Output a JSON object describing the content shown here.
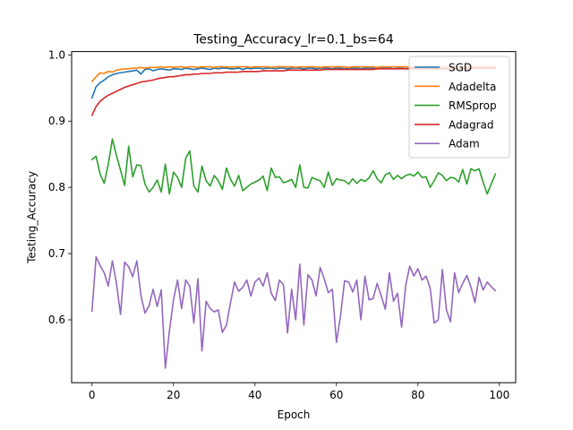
{
  "chart_data": {
    "type": "line",
    "title": "Testing_Accuracy_lr=0.1_bs=64",
    "xlabel": "Epoch",
    "ylabel": "Testing_Accuracy",
    "xlim": [
      -5,
      104
    ],
    "ylim": [
      0.505,
      1.005
    ],
    "xticks": [
      0,
      20,
      40,
      60,
      80,
      100
    ],
    "yticks": [
      0.6,
      0.7,
      0.8,
      0.9,
      1.0
    ],
    "xtick_labels": [
      "0",
      "20",
      "40",
      "60",
      "80",
      "100"
    ],
    "ytick_labels": [
      "0.6",
      "0.7",
      "0.8",
      "0.9",
      "1.0"
    ],
    "grid": false,
    "legend_position": "top-right",
    "x": [
      0,
      1,
      2,
      3,
      4,
      5,
      6,
      7,
      8,
      9,
      10,
      11,
      12,
      13,
      14,
      15,
      16,
      17,
      18,
      19,
      20,
      21,
      22,
      23,
      24,
      25,
      26,
      27,
      28,
      29,
      30,
      31,
      32,
      33,
      34,
      35,
      36,
      37,
      38,
      39,
      40,
      41,
      42,
      43,
      44,
      45,
      46,
      47,
      48,
      49,
      50,
      51,
      52,
      53,
      54,
      55,
      56,
      57,
      58,
      59,
      60,
      61,
      62,
      63,
      64,
      65,
      66,
      67,
      68,
      69,
      70,
      71,
      72,
      73,
      74,
      75,
      76,
      77,
      78,
      79,
      80,
      81,
      82,
      83,
      84,
      85,
      86,
      87,
      88,
      89,
      90,
      91,
      92,
      93,
      94,
      95,
      96,
      97,
      98,
      99
    ],
    "series": [
      {
        "name": "SGD",
        "color": "#1f77b4",
        "values": [
          0.935,
          0.952,
          0.958,
          0.962,
          0.967,
          0.97,
          0.972,
          0.973,
          0.974,
          0.975,
          0.976,
          0.977,
          0.971,
          0.978,
          0.979,
          0.976,
          0.978,
          0.979,
          0.978,
          0.977,
          0.979,
          0.979,
          0.978,
          0.98,
          0.979,
          0.978,
          0.979,
          0.98,
          0.979,
          0.978,
          0.98,
          0.979,
          0.98,
          0.98,
          0.979,
          0.979,
          0.98,
          0.978,
          0.98,
          0.979,
          0.98,
          0.98,
          0.979,
          0.98,
          0.98,
          0.979,
          0.98,
          0.98,
          0.979,
          0.98,
          0.98,
          0.98,
          0.979,
          0.98,
          0.98,
          0.979,
          0.98,
          0.98,
          0.98,
          0.979,
          0.98,
          0.98,
          0.979,
          0.98,
          0.98,
          0.98,
          0.979,
          0.98,
          0.98,
          0.98,
          0.979,
          0.98,
          0.98,
          0.98,
          0.979,
          0.98,
          0.98,
          0.979,
          0.98,
          0.98,
          0.98,
          0.98,
          0.979,
          0.98,
          0.98,
          0.98,
          0.979,
          0.98,
          0.98,
          0.98,
          0.98,
          0.979,
          0.98,
          0.98,
          0.98,
          0.98,
          0.98,
          0.98,
          0.98,
          0.98
        ]
      },
      {
        "name": "Adadelta",
        "color": "#ff7f0e",
        "values": [
          0.96,
          0.967,
          0.973,
          0.972,
          0.975,
          0.974,
          0.977,
          0.978,
          0.979,
          0.979,
          0.98,
          0.98,
          0.981,
          0.98,
          0.981,
          0.981,
          0.981,
          0.982,
          0.981,
          0.982,
          0.981,
          0.982,
          0.982,
          0.981,
          0.982,
          0.982,
          0.981,
          0.982,
          0.982,
          0.982,
          0.981,
          0.982,
          0.982,
          0.982,
          0.981,
          0.982,
          0.982,
          0.982,
          0.982,
          0.981,
          0.982,
          0.982,
          0.982,
          0.982,
          0.981,
          0.982,
          0.982,
          0.982,
          0.982,
          0.982,
          0.981,
          0.982,
          0.982,
          0.982,
          0.982,
          0.982,
          0.981,
          0.982,
          0.982,
          0.982,
          0.982,
          0.982,
          0.982,
          0.981,
          0.982,
          0.982,
          0.982,
          0.982,
          0.982,
          0.982,
          0.981,
          0.982,
          0.982,
          0.982,
          0.982,
          0.982,
          0.982,
          0.982,
          0.981,
          0.982,
          0.982,
          0.982,
          0.982,
          0.982,
          0.982,
          0.982,
          0.982,
          0.981,
          0.982,
          0.982,
          0.982,
          0.982,
          0.982,
          0.982,
          0.982,
          0.982,
          0.982,
          0.981,
          0.982,
          0.982
        ]
      },
      {
        "name": "RMSprop",
        "color": "#2ca02c",
        "values": [
          0.842,
          0.847,
          0.82,
          0.806,
          0.835,
          0.873,
          0.848,
          0.826,
          0.803,
          0.862,
          0.816,
          0.834,
          0.833,
          0.805,
          0.793,
          0.8,
          0.811,
          0.793,
          0.835,
          0.79,
          0.823,
          0.815,
          0.8,
          0.844,
          0.855,
          0.802,
          0.793,
          0.832,
          0.81,
          0.802,
          0.818,
          0.81,
          0.797,
          0.829,
          0.812,
          0.802,
          0.818,
          0.795,
          0.8,
          0.805,
          0.808,
          0.811,
          0.817,
          0.795,
          0.829,
          0.815,
          0.816,
          0.807,
          0.809,
          0.812,
          0.8,
          0.834,
          0.8,
          0.799,
          0.815,
          0.812,
          0.81,
          0.8,
          0.823,
          0.803,
          0.813,
          0.811,
          0.81,
          0.805,
          0.813,
          0.806,
          0.812,
          0.809,
          0.814,
          0.825,
          0.813,
          0.807,
          0.819,
          0.822,
          0.812,
          0.818,
          0.813,
          0.818,
          0.82,
          0.817,
          0.823,
          0.815,
          0.816,
          0.8,
          0.81,
          0.822,
          0.818,
          0.81,
          0.815,
          0.814,
          0.808,
          0.827,
          0.805,
          0.828,
          0.825,
          0.828,
          0.808,
          0.79,
          0.805,
          0.82
        ]
      },
      {
        "name": "Adagrad",
        "color": "#d62728",
        "values": [
          0.909,
          0.922,
          0.93,
          0.935,
          0.939,
          0.942,
          0.945,
          0.948,
          0.951,
          0.953,
          0.955,
          0.957,
          0.959,
          0.96,
          0.961,
          0.962,
          0.964,
          0.965,
          0.966,
          0.967,
          0.967,
          0.968,
          0.969,
          0.97,
          0.97,
          0.971,
          0.971,
          0.972,
          0.972,
          0.972,
          0.973,
          0.973,
          0.973,
          0.974,
          0.974,
          0.974,
          0.974,
          0.975,
          0.975,
          0.975,
          0.975,
          0.975,
          0.976,
          0.976,
          0.976,
          0.976,
          0.976,
          0.976,
          0.977,
          0.977,
          0.977,
          0.977,
          0.977,
          0.977,
          0.977,
          0.977,
          0.977,
          0.978,
          0.978,
          0.978,
          0.978,
          0.978,
          0.978,
          0.978,
          0.978,
          0.978,
          0.978,
          0.978,
          0.978,
          0.978,
          0.979,
          0.979,
          0.979,
          0.979,
          0.979,
          0.979,
          0.979,
          0.979,
          0.979,
          0.979,
          0.979,
          0.979,
          0.979,
          0.979,
          0.979,
          0.979,
          0.979,
          0.979,
          0.979,
          0.979,
          0.979,
          0.979,
          0.979,
          0.979,
          0.98,
          0.98,
          0.98,
          0.98,
          0.98,
          0.98
        ]
      },
      {
        "name": "Adam",
        "color": "#9467bd",
        "values": [
          0.613,
          0.695,
          0.682,
          0.671,
          0.651,
          0.689,
          0.655,
          0.608,
          0.687,
          0.68,
          0.665,
          0.689,
          0.637,
          0.61,
          0.621,
          0.646,
          0.62,
          0.645,
          0.527,
          0.583,
          0.63,
          0.66,
          0.617,
          0.66,
          0.651,
          0.595,
          0.662,
          0.553,
          0.628,
          0.617,
          0.612,
          0.615,
          0.581,
          0.592,
          0.626,
          0.657,
          0.643,
          0.649,
          0.66,
          0.636,
          0.657,
          0.663,
          0.651,
          0.671,
          0.64,
          0.629,
          0.66,
          0.653,
          0.58,
          0.646,
          0.6,
          0.684,
          0.592,
          0.668,
          0.66,
          0.636,
          0.679,
          0.662,
          0.641,
          0.646,
          0.566,
          0.606,
          0.659,
          0.657,
          0.642,
          0.66,
          0.6,
          0.666,
          0.63,
          0.632,
          0.655,
          0.636,
          0.616,
          0.671,
          0.628,
          0.64,
          0.589,
          0.652,
          0.681,
          0.666,
          0.677,
          0.66,
          0.666,
          0.648,
          0.595,
          0.6,
          0.676,
          0.615,
          0.597,
          0.671,
          0.641,
          0.655,
          0.667,
          0.65,
          0.626,
          0.664,
          0.645,
          0.657,
          0.65,
          0.644
        ]
      }
    ]
  }
}
